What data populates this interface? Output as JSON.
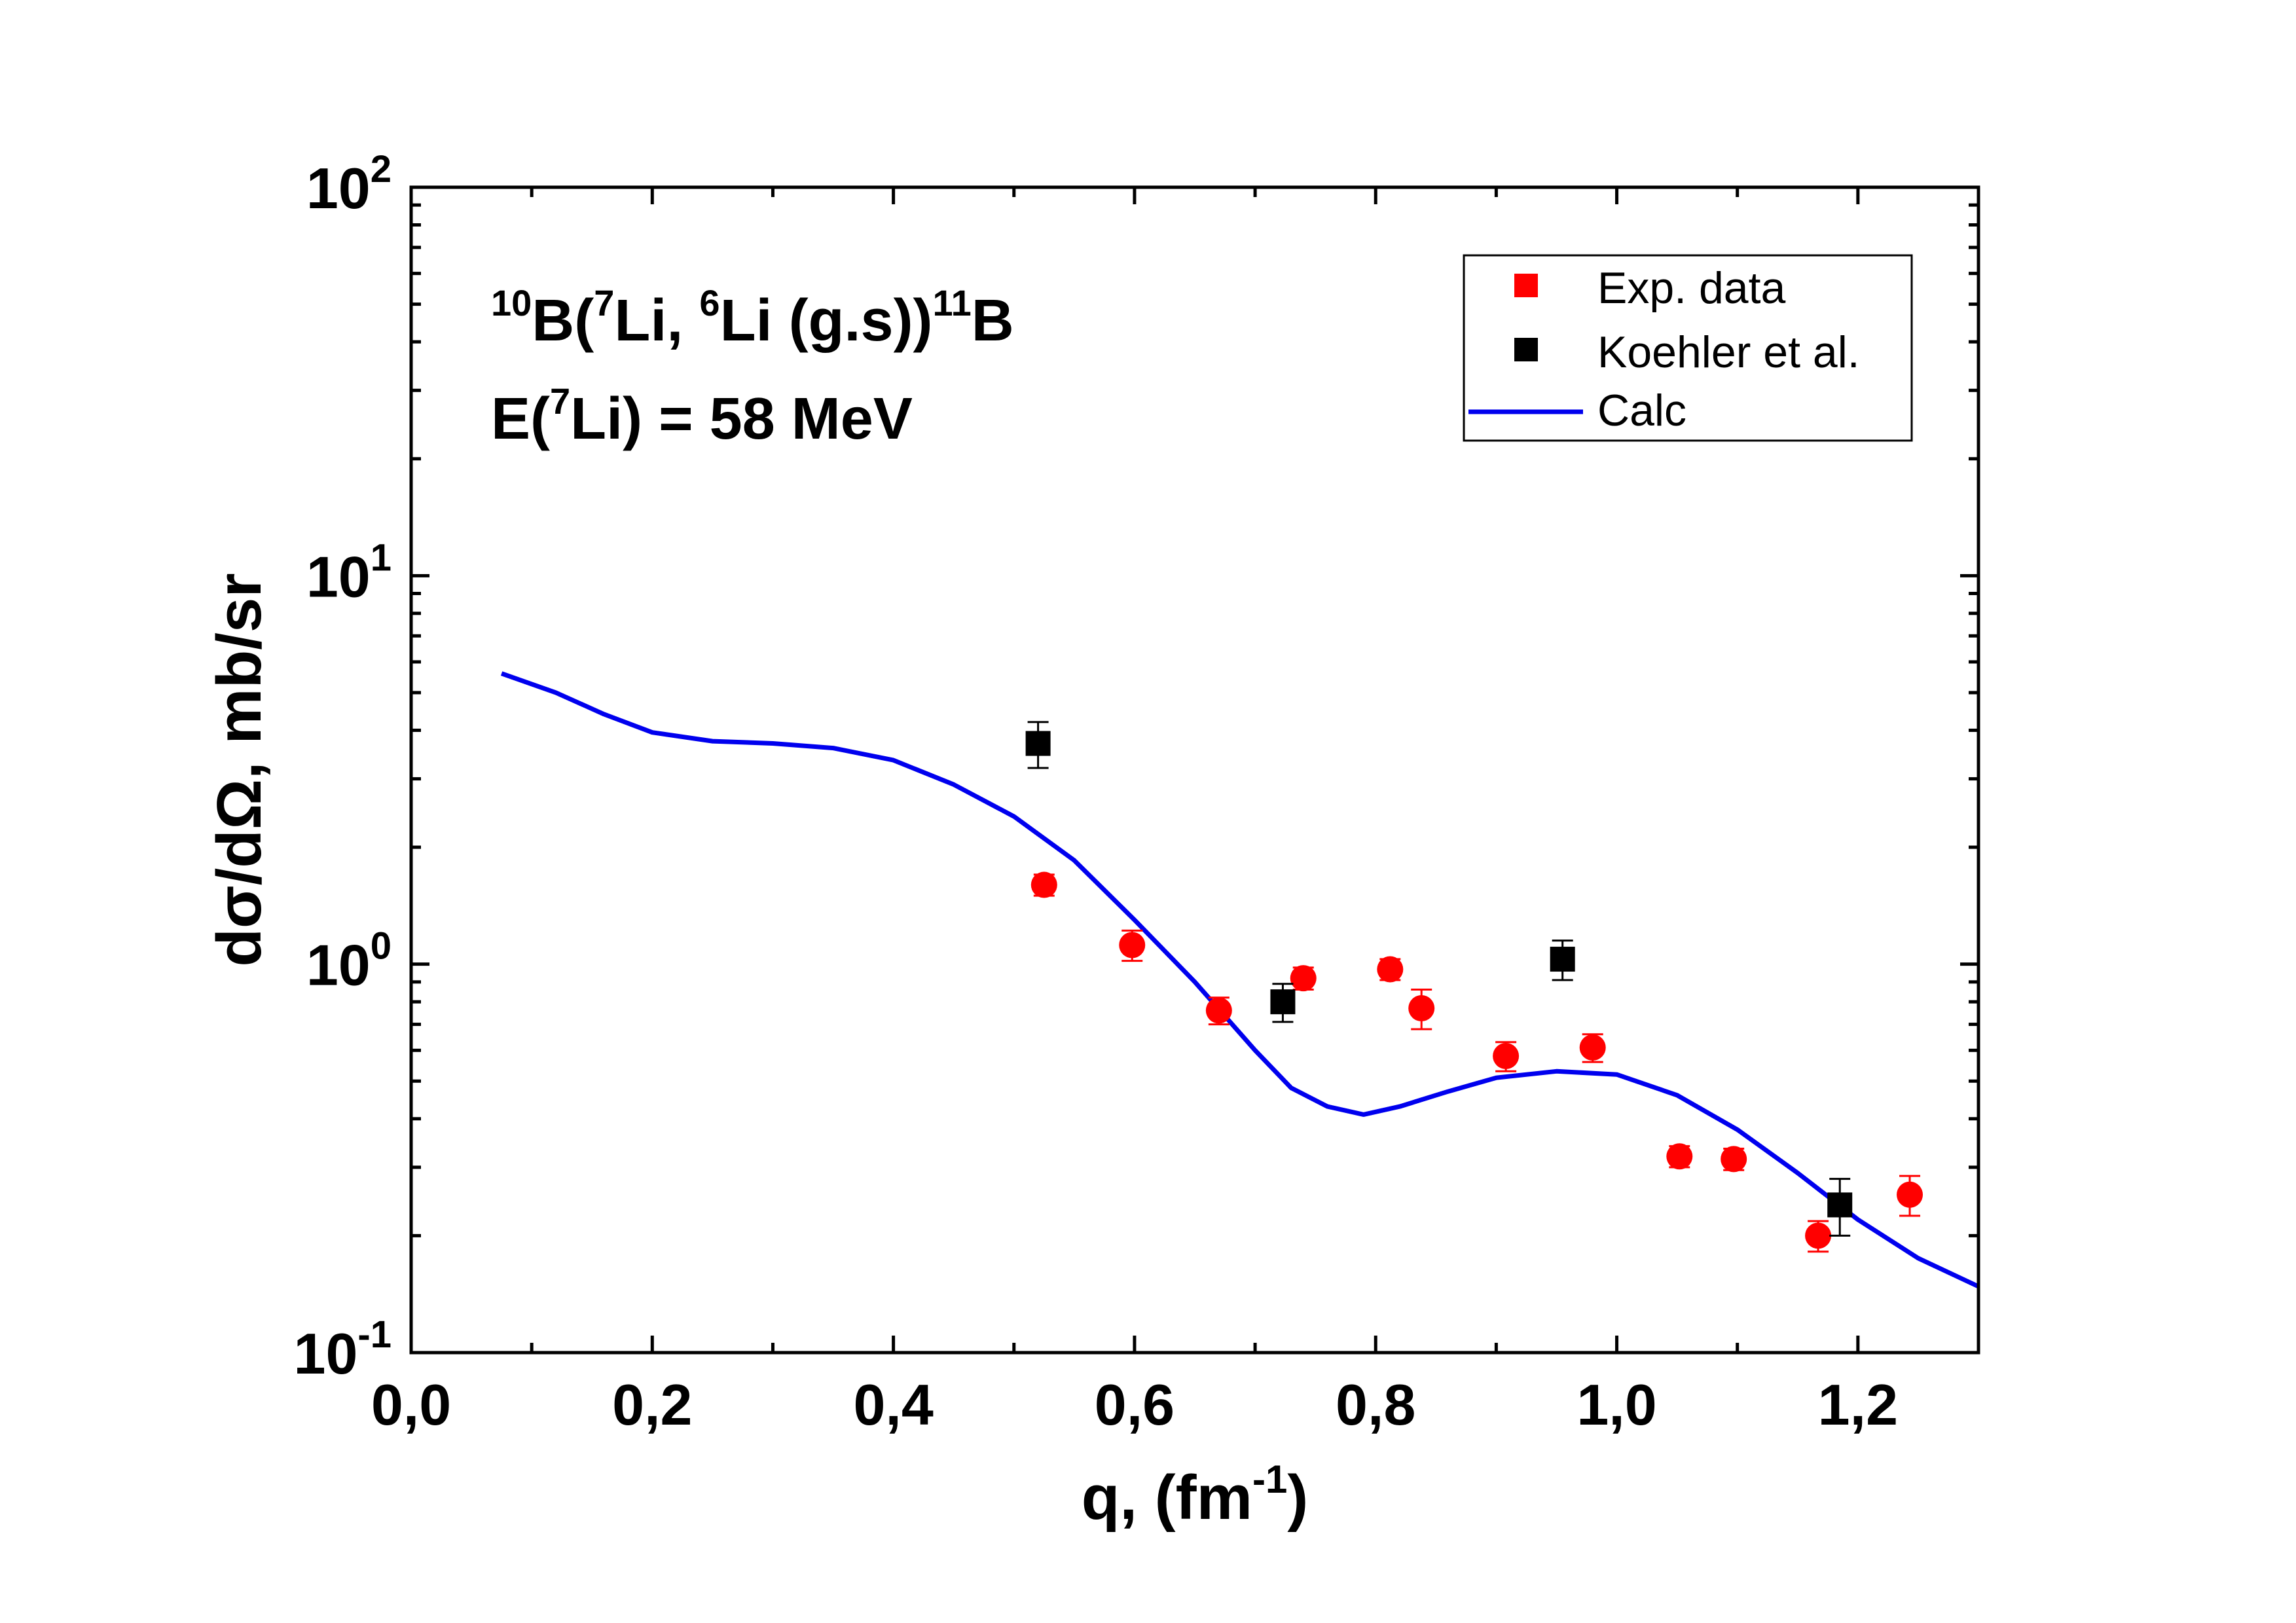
{
  "chart_data": {
    "type": "scatter",
    "title": "",
    "annotation": {
      "reaction_parts": [
        "10",
        "B(",
        "7",
        "Li, ",
        "6",
        "Li (g.s))",
        "11",
        "B"
      ],
      "energy_parts": [
        "E(",
        "7",
        "Li) = 58 MeV"
      ]
    },
    "xlabel": {
      "main": "q, (fm",
      "sup": "-1",
      "end": ")"
    },
    "ylabel": "dσ/dΩ, mb/sr",
    "xlim": [
      0.0,
      1.3
    ],
    "ylim": [
      0.1,
      100
    ],
    "yscale": "log",
    "x_ticks": [
      {
        "value": 0.0,
        "label": "0,0"
      },
      {
        "value": 0.2,
        "label": "0,2"
      },
      {
        "value": 0.4,
        "label": "0,4"
      },
      {
        "value": 0.6,
        "label": "0,6"
      },
      {
        "value": 0.8,
        "label": "0,8"
      },
      {
        "value": 1.0,
        "label": "1,0"
      },
      {
        "value": 1.2,
        "label": "1,2"
      }
    ],
    "y_ticks": [
      {
        "value": 0.1,
        "base": "10",
        "exp": "-1"
      },
      {
        "value": 1,
        "base": "10",
        "exp": "0"
      },
      {
        "value": 10,
        "base": "10",
        "exp": "1"
      },
      {
        "value": 100,
        "base": "10",
        "exp": "2"
      }
    ],
    "legend_position": "top-right",
    "series": [
      {
        "name": "Exp. data",
        "kind": "points",
        "marker": "circle",
        "legend_marker": "square",
        "color": "#ff0000",
        "points": [
          {
            "x": 0.525,
            "y": 1.6,
            "err": 0.1
          },
          {
            "x": 0.598,
            "y": 1.12,
            "err": 0.1
          },
          {
            "x": 0.67,
            "y": 0.76,
            "err": 0.06
          },
          {
            "x": 0.74,
            "y": 0.92,
            "err": 0.06
          },
          {
            "x": 0.812,
            "y": 0.97,
            "err": 0.06
          },
          {
            "x": 0.838,
            "y": 0.77,
            "err": 0.09
          },
          {
            "x": 0.908,
            "y": 0.58,
            "err": 0.05
          },
          {
            "x": 0.98,
            "y": 0.61,
            "err": 0.05
          },
          {
            "x": 1.052,
            "y": 0.32,
            "err": 0.02
          },
          {
            "x": 1.097,
            "y": 0.315,
            "err": 0.02
          },
          {
            "x": 1.167,
            "y": 0.2,
            "err": 0.018
          },
          {
            "x": 1.243,
            "y": 0.255,
            "err": 0.03
          }
        ]
      },
      {
        "name": "Koehler et al.",
        "kind": "points",
        "marker": "square",
        "legend_marker": "square",
        "color": "#000000",
        "points": [
          {
            "x": 0.52,
            "y": 3.7,
            "err": 0.5
          },
          {
            "x": 0.723,
            "y": 0.8,
            "err": 0.09
          },
          {
            "x": 0.955,
            "y": 1.03,
            "err": 0.12
          },
          {
            "x": 1.185,
            "y": 0.24,
            "err": 0.04
          }
        ]
      },
      {
        "name": "Calc",
        "kind": "line",
        "color": "#0000ee",
        "points": [
          {
            "x": 0.075,
            "y": 5.6
          },
          {
            "x": 0.12,
            "y": 5.0
          },
          {
            "x": 0.16,
            "y": 4.4
          },
          {
            "x": 0.2,
            "y": 3.95
          },
          {
            "x": 0.25,
            "y": 3.75
          },
          {
            "x": 0.3,
            "y": 3.7
          },
          {
            "x": 0.35,
            "y": 3.6
          },
          {
            "x": 0.4,
            "y": 3.35
          },
          {
            "x": 0.45,
            "y": 2.9
          },
          {
            "x": 0.5,
            "y": 2.4
          },
          {
            "x": 0.55,
            "y": 1.85
          },
          {
            "x": 0.6,
            "y": 1.3
          },
          {
            "x": 0.65,
            "y": 0.9
          },
          {
            "x": 0.7,
            "y": 0.6
          },
          {
            "x": 0.73,
            "y": 0.48
          },
          {
            "x": 0.76,
            "y": 0.43
          },
          {
            "x": 0.79,
            "y": 0.41
          },
          {
            "x": 0.82,
            "y": 0.43
          },
          {
            "x": 0.86,
            "y": 0.47
          },
          {
            "x": 0.9,
            "y": 0.51
          },
          {
            "x": 0.95,
            "y": 0.53
          },
          {
            "x": 1.0,
            "y": 0.52
          },
          {
            "x": 1.05,
            "y": 0.46
          },
          {
            "x": 1.1,
            "y": 0.375
          },
          {
            "x": 1.15,
            "y": 0.29
          },
          {
            "x": 1.2,
            "y": 0.22
          },
          {
            "x": 1.25,
            "y": 0.175
          },
          {
            "x": 1.3,
            "y": 0.148
          }
        ]
      }
    ]
  }
}
